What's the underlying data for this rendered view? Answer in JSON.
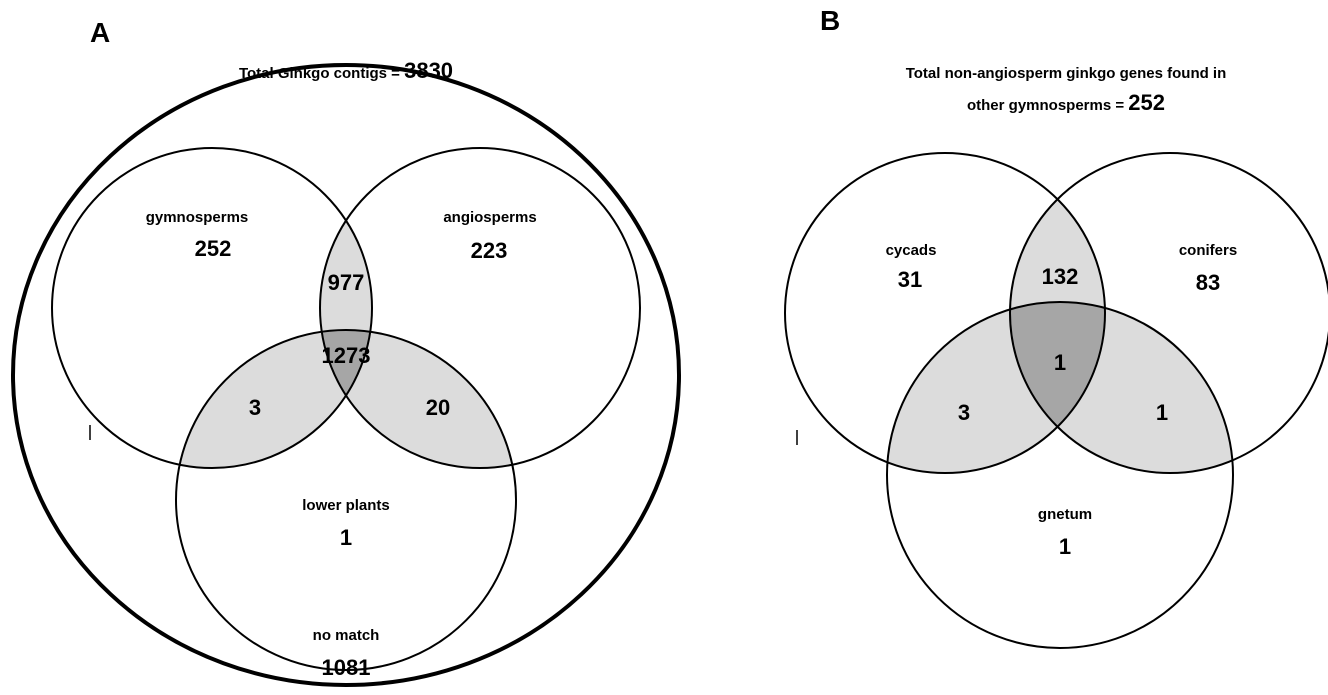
{
  "panels": [
    {
      "letter": "A",
      "title_prefix": "Total Ginkgo contigs = ",
      "title_total": "3830",
      "sets": {
        "left": {
          "label": "gymnosperms",
          "only": "252"
        },
        "right": {
          "label": "angiosperms",
          "only": "223"
        },
        "bottom": {
          "label": "lower plants",
          "only": "1"
        }
      },
      "intersections": {
        "left_right": "977",
        "left_bottom": "3",
        "right_bottom": "20",
        "all": "1273"
      },
      "outside": {
        "label": "no match",
        "value": "1081"
      }
    },
    {
      "letter": "B",
      "title_line1": "Total non-angiosperm ginkgo genes found in",
      "title_line2_prefix": "other gymnosperms = ",
      "title_total": "252",
      "sets": {
        "left": {
          "label": "cycads",
          "only": "31"
        },
        "right": {
          "label": "conifers",
          "only": "83"
        },
        "bottom": {
          "label": "gnetum",
          "only": "1"
        }
      },
      "intersections": {
        "left_right": "132",
        "left_bottom": "3",
        "right_bottom": "1",
        "all": "1"
      }
    }
  ],
  "colors": {
    "pair_overlap": "#dcdcdc",
    "triple_overlap": "#a6a6a6",
    "outline": "#000000"
  }
}
